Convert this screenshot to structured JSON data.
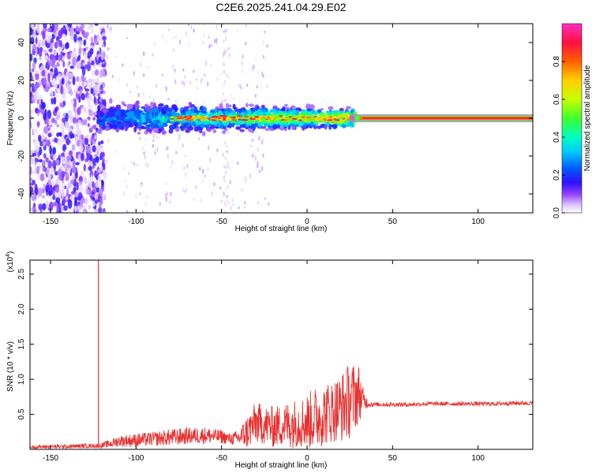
{
  "title": "C2E6.2025.241.04.29.E02",
  "chart_data": [
    {
      "type": "heatmap",
      "xlabel": "Height of straight line (km)",
      "ylabel": "Frequency (Hz)",
      "xlim": [
        -162,
        132
      ],
      "ylim": [
        -50,
        50
      ],
      "xticks": [
        -150,
        -100,
        -50,
        0,
        50,
        100
      ],
      "yticks": [
        -40,
        -20,
        0,
        20,
        40
      ],
      "grid": false,
      "colorbar": {
        "label": "Normalized spectral amplitude",
        "range": [
          0.0,
          1.0
        ],
        "ticks": [
          0.0,
          0.2,
          0.4,
          0.6,
          0.8
        ],
        "tick_labels": [
          "0.0",
          "0.2",
          "0.4",
          "0.6",
          "0.8"
        ]
      },
      "description_regions": [
        {
          "x": [
            -162,
            -122
          ],
          "y": [
            -50,
            50
          ],
          "amplitude_range": [
            0.0,
            0.15
          ]
        },
        {
          "x": [
            -122,
            28
          ],
          "y": [
            -8,
            8
          ],
          "amplitude_range": [
            0.1,
            0.9
          ]
        },
        {
          "x": [
            28,
            132
          ],
          "y": [
            -1.5,
            1.5
          ],
          "amplitude_range": [
            0.9,
            1.0
          ]
        }
      ]
    },
    {
      "type": "line",
      "xlabel": "Height of straight line (km)",
      "ylabel": "SNR (10 * v/v)",
      "y_multiplier": "(x10^4)",
      "xlim": [
        -162,
        132
      ],
      "ylim": [
        0,
        2.7
      ],
      "xticks": [
        -150,
        -100,
        -50,
        0,
        50,
        100
      ],
      "yticks": [
        0.5,
        1.0,
        1.5,
        2.0,
        2.5
      ],
      "ytick_labels": [
        "0.5",
        "1.0",
        "1.5",
        "2.0",
        "2.5"
      ],
      "grid": false,
      "color": "#e83030",
      "spike": {
        "x": -122,
        "y": 2.7
      },
      "series": [
        {
          "x": [
            -162,
            -150,
            -140,
            -130,
            -122,
            -115,
            -110,
            -100,
            -90,
            -80,
            -70,
            -60,
            -50,
            -45,
            -40,
            -35,
            -30,
            -25,
            -20,
            -15,
            -10,
            -5,
            0,
            5,
            10,
            15,
            20,
            25,
            30,
            33,
            36,
            40,
            50,
            60,
            70,
            80,
            90,
            100,
            110,
            120,
            132
          ],
          "y": [
            0.03,
            0.04,
            0.04,
            0.05,
            0.05,
            0.08,
            0.12,
            0.13,
            0.15,
            0.17,
            0.19,
            0.2,
            0.18,
            0.15,
            0.16,
            0.25,
            0.38,
            0.35,
            0.32,
            0.34,
            0.36,
            0.38,
            0.4,
            0.45,
            0.5,
            0.55,
            0.6,
            0.7,
            0.8,
            0.7,
            0.65,
            0.64,
            0.64,
            0.64,
            0.65,
            0.65,
            0.65,
            0.65,
            0.65,
            0.66,
            0.66
          ],
          "envelope": [
            0.02,
            0.03,
            0.03,
            0.03,
            0.03,
            0.06,
            0.08,
            0.1,
            0.1,
            0.12,
            0.12,
            0.12,
            0.1,
            0.08,
            0.12,
            0.25,
            0.3,
            0.28,
            0.3,
            0.3,
            0.35,
            0.35,
            0.4,
            0.45,
            0.45,
            0.45,
            0.5,
            0.55,
            0.45,
            0.15,
            0.05,
            0.03,
            0.03,
            0.03,
            0.03,
            0.03,
            0.03,
            0.03,
            0.03,
            0.03,
            0.03
          ]
        }
      ]
    }
  ],
  "colors": {
    "line": "#e83030",
    "colormap": [
      "#ffffff",
      "#e0c8ff",
      "#9040ff",
      "#3010ff",
      "#0060ff",
      "#00c8ff",
      "#00ffc0",
      "#40ff30",
      "#c8ff00",
      "#ffd000",
      "#ff6000",
      "#ff1040",
      "#ff30c0"
    ]
  }
}
